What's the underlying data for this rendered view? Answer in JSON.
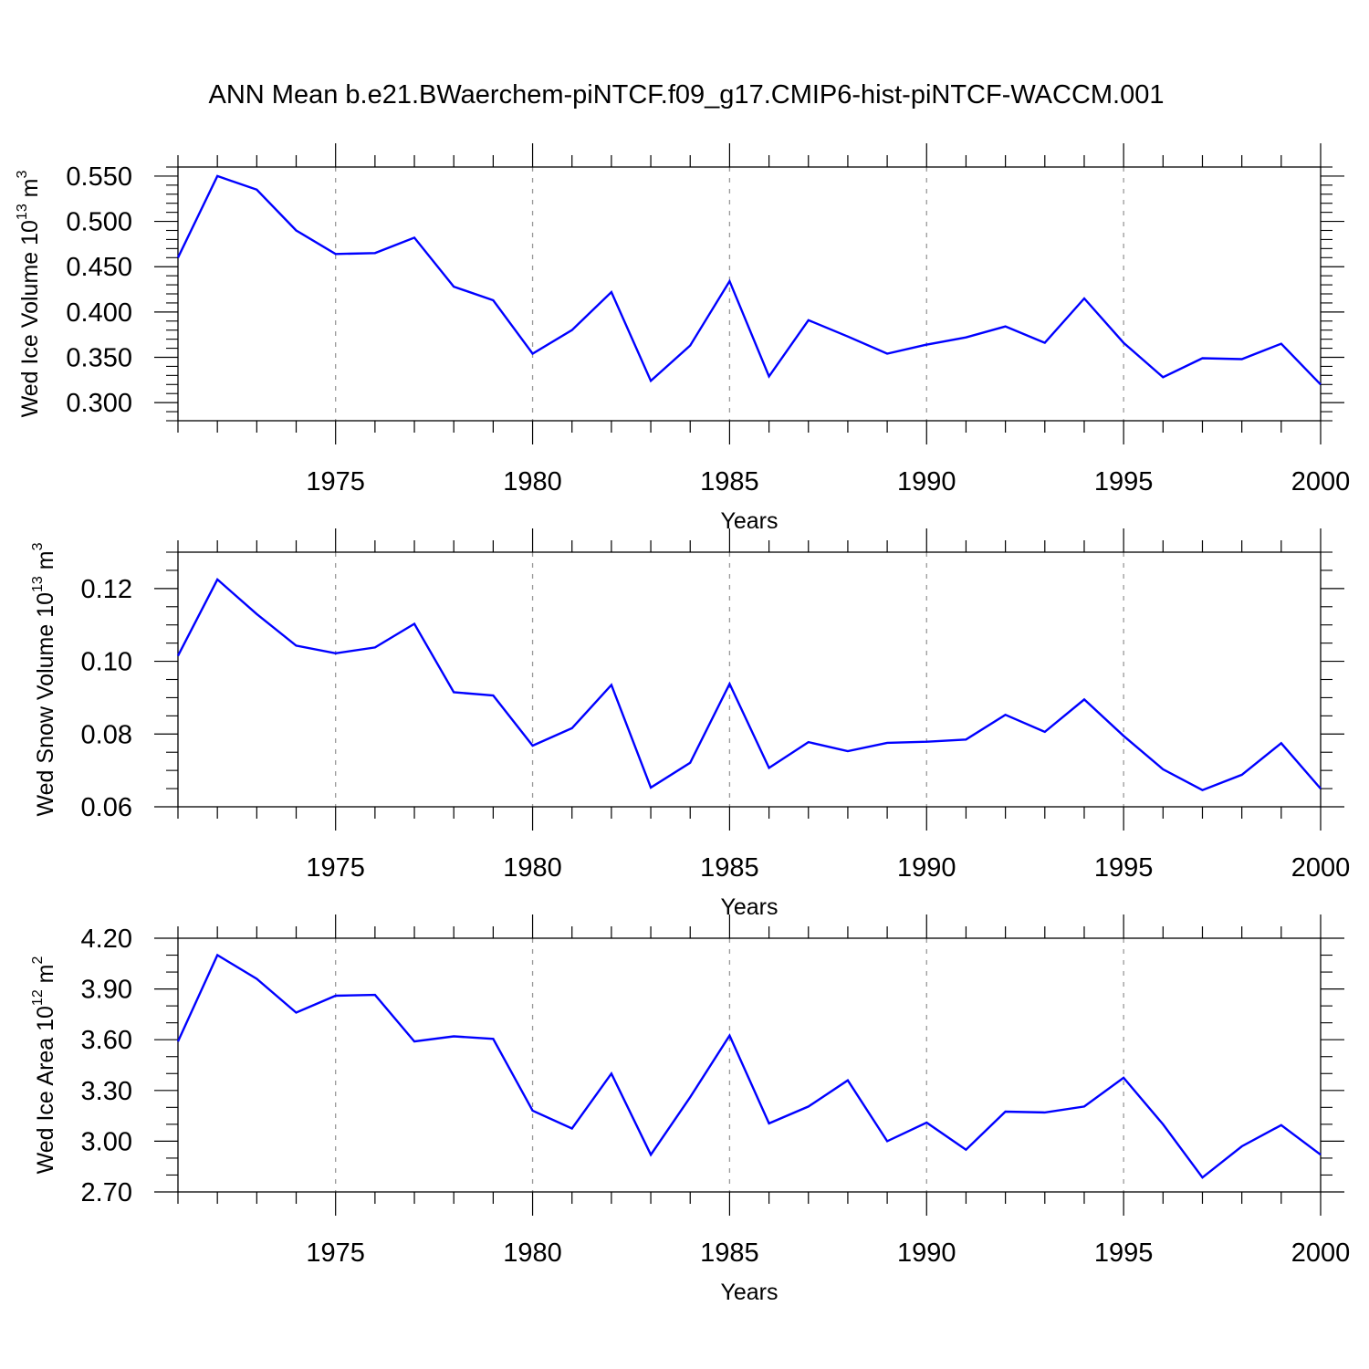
{
  "title": "ANN Mean b.e21.BWaerchem-piNTCF.f09_g17.CMIP6-hist-piNTCF-WACCM.001",
  "colors": {
    "line": "#0000ff",
    "axis": "#000000",
    "grid": "#999999"
  },
  "chart_data": [
    {
      "type": "line",
      "ylabel_main": "Wed Ice Volume 10",
      "ylabel_exp": "13",
      "ylabel_unit": " m",
      "ylabel_unit_exp": "3",
      "xlabel": "Years",
      "xlim": [
        1971,
        2000
      ],
      "ylim": [
        0.28,
        0.56
      ],
      "yticks": [
        0.3,
        0.35,
        0.4,
        0.45,
        0.5,
        0.55
      ],
      "ytick_labels": [
        "0.300",
        "0.350",
        "0.400",
        "0.450",
        "0.500",
        "0.550"
      ],
      "yminor_step": 0.01,
      "xticks": [
        1975,
        1980,
        1985,
        1990,
        1995,
        2000
      ],
      "xtick_labels": [
        "1975",
        "1980",
        "1985",
        "1990",
        "1995",
        "2000"
      ],
      "grid": "vertical dashed at major x ticks",
      "x": [
        1971,
        1972,
        1973,
        1974,
        1975,
        1976,
        1977,
        1978,
        1979,
        1980,
        1981,
        1982,
        1983,
        1984,
        1985,
        1986,
        1987,
        1988,
        1989,
        1990,
        1991,
        1992,
        1993,
        1994,
        1995,
        1996,
        1997,
        1998,
        1999,
        2000
      ],
      "values": [
        0.46,
        0.55,
        0.535,
        0.49,
        0.464,
        0.465,
        0.482,
        0.428,
        0.413,
        0.354,
        0.38,
        0.422,
        0.324,
        0.363,
        0.434,
        0.329,
        0.391,
        0.373,
        0.354,
        0.364,
        0.372,
        0.384,
        0.366,
        0.415,
        0.366,
        0.328,
        0.349,
        0.348,
        0.365,
        0.32
      ]
    },
    {
      "type": "line",
      "ylabel_main": "Wed Snow Volume 10",
      "ylabel_exp": "13",
      "ylabel_unit": " m",
      "ylabel_unit_exp": "3",
      "xlabel": "Years",
      "xlim": [
        1971,
        2000
      ],
      "ylim": [
        0.06,
        0.13
      ],
      "yticks": [
        0.06,
        0.08,
        0.1,
        0.12
      ],
      "ytick_labels": [
        "0.06",
        "0.08",
        "0.10",
        "0.12"
      ],
      "yminor_step": 0.005,
      "xticks": [
        1975,
        1980,
        1985,
        1990,
        1995,
        2000
      ],
      "xtick_labels": [
        "1975",
        "1980",
        "1985",
        "1990",
        "1995",
        "2000"
      ],
      "grid": "vertical dashed at major x ticks",
      "x": [
        1971,
        1972,
        1973,
        1974,
        1975,
        1976,
        1977,
        1978,
        1979,
        1980,
        1981,
        1982,
        1983,
        1984,
        1985,
        1986,
        1987,
        1988,
        1989,
        1990,
        1991,
        1992,
        1993,
        1994,
        1995,
        1996,
        1997,
        1998,
        1999,
        2000
      ],
      "values": [
        0.1015,
        0.1225,
        0.113,
        0.1043,
        0.1022,
        0.1038,
        0.1103,
        0.0915,
        0.0906,
        0.0768,
        0.0816,
        0.0935,
        0.0653,
        0.0721,
        0.0938,
        0.0707,
        0.0778,
        0.0753,
        0.0776,
        0.0779,
        0.0785,
        0.0853,
        0.0806,
        0.0895,
        0.0795,
        0.0703,
        0.0646,
        0.0688,
        0.0775,
        0.065
      ]
    },
    {
      "type": "line",
      "ylabel_main": "Wed Ice Area 10",
      "ylabel_exp": "12",
      "ylabel_unit": " m",
      "ylabel_unit_exp": "2",
      "xlabel": "Years",
      "xlim": [
        1971,
        2000
      ],
      "ylim": [
        2.7,
        4.2
      ],
      "yticks": [
        2.7,
        3.0,
        3.3,
        3.6,
        3.9,
        4.2
      ],
      "ytick_labels": [
        "2.70",
        "3.00",
        "3.30",
        "3.60",
        "3.90",
        "4.20"
      ],
      "yminor_step": 0.1,
      "xticks": [
        1975,
        1980,
        1985,
        1990,
        1995,
        2000
      ],
      "xtick_labels": [
        "1975",
        "1980",
        "1985",
        "1990",
        "1995",
        "2000"
      ],
      "grid": "vertical dashed at major x ticks",
      "x": [
        1971,
        1972,
        1973,
        1974,
        1975,
        1976,
        1977,
        1978,
        1979,
        1980,
        1981,
        1982,
        1983,
        1984,
        1985,
        1986,
        1987,
        1988,
        1989,
        1990,
        1991,
        1992,
        1993,
        1994,
        1995,
        1996,
        1997,
        1998,
        1999,
        2000
      ],
      "values": [
        3.59,
        4.1,
        3.96,
        3.76,
        3.86,
        3.865,
        3.59,
        3.62,
        3.605,
        3.18,
        3.075,
        3.4,
        2.92,
        3.26,
        3.625,
        3.105,
        3.205,
        3.36,
        3.0,
        3.11,
        2.95,
        3.175,
        3.17,
        3.205,
        3.375,
        3.1,
        2.785,
        2.97,
        3.095,
        2.92
      ]
    }
  ]
}
